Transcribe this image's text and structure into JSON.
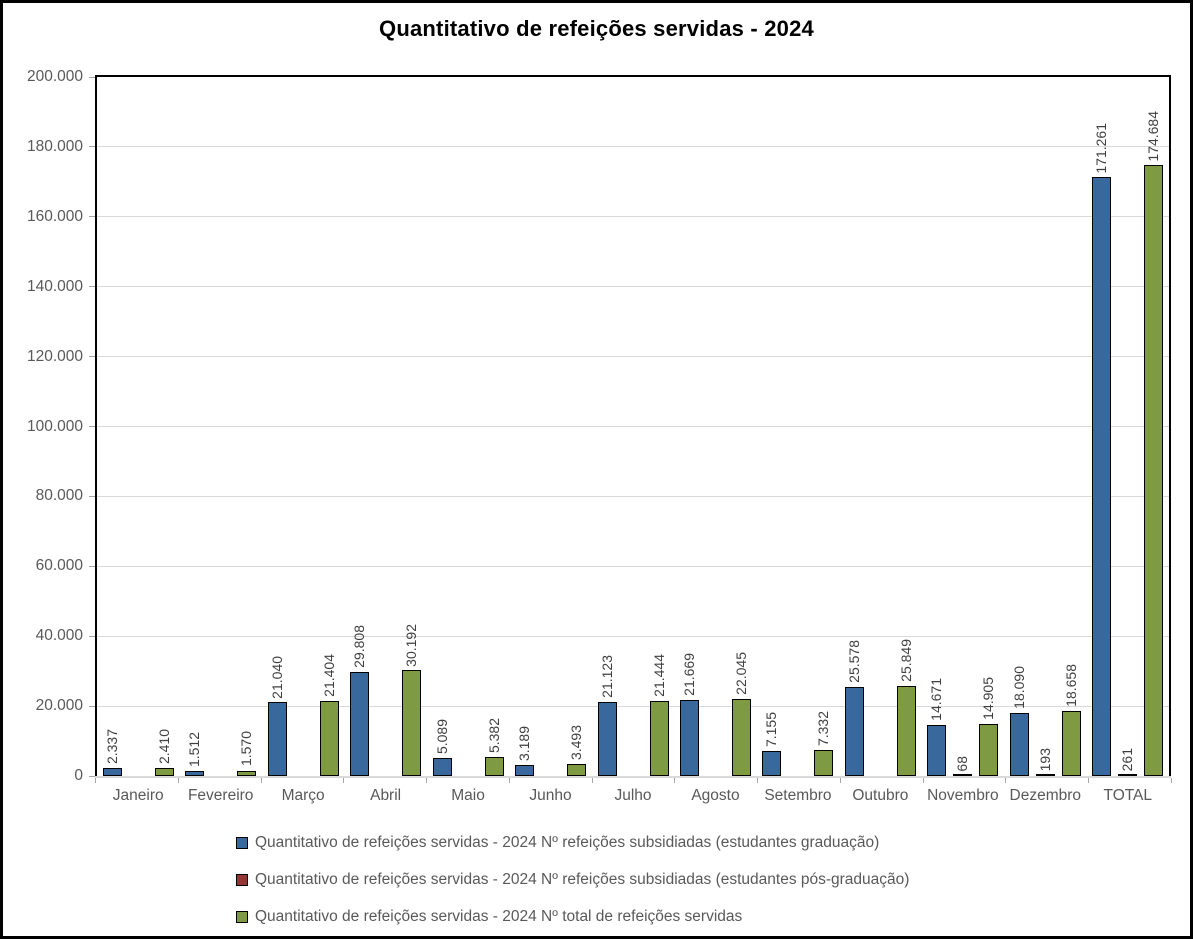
{
  "colors": {
    "series_graduacao": "#38689C",
    "series_pos_graduacao": "#943634",
    "series_total": "#7E9B44",
    "bar_border": "#000000",
    "gridline": "#D9D9D9",
    "plot_border": "#000000",
    "baseline": "#D9D9D9",
    "tick": "#A6A6A6",
    "axis_text": "#595959",
    "value_label_text": "#3F3F3F",
    "title_text": "#000000",
    "background": "#FFFFFF"
  },
  "chart_data": {
    "type": "bar",
    "title": "Quantitativo de refeições servidas - 2024",
    "categories": [
      "Janeiro",
      "Fevereiro",
      "Março",
      "Abril",
      "Maio",
      "Junho",
      "Julho",
      "Agosto",
      "Setembro",
      "Outubro",
      "Novembro",
      "Dezembro",
      "TOTAL"
    ],
    "series": [
      {
        "name": "Quantitativo de refeições servidas - 2024 Nº refeições subsidiadas (estudantes graduação)",
        "color": "#38689C",
        "values": [
          2337,
          1512,
          21040,
          29808,
          5089,
          3189,
          21123,
          21669,
          7155,
          25578,
          14671,
          18090,
          171261
        ],
        "labels": [
          "2.337",
          "1.512",
          "21.040",
          "29.808",
          "5.089",
          "3.189",
          "21.123",
          "21.669",
          "7.155",
          "25.578",
          "14.671",
          "18.090",
          "171.261"
        ]
      },
      {
        "name": "Quantitativo de refeições servidas - 2024 Nº refeições subsidiadas (estudantes pós-graduação)",
        "color": "#943634",
        "values": [
          null,
          null,
          null,
          null,
          null,
          null,
          null,
          null,
          null,
          null,
          68,
          193,
          261
        ],
        "labels": [
          null,
          null,
          null,
          null,
          null,
          null,
          null,
          null,
          null,
          null,
          "68",
          "193",
          "261"
        ]
      },
      {
        "name": "Quantitativo de refeições servidas - 2024 Nº total de refeições servidas",
        "color": "#7E9B44",
        "values": [
          2410,
          1570,
          21404,
          30192,
          5382,
          3493,
          21444,
          22045,
          7332,
          25849,
          14905,
          18658,
          174684
        ],
        "labels": [
          "2.410",
          "1.570",
          "21.404",
          "30.192",
          "5.382",
          "3.493",
          "21.444",
          "22.045",
          "7.332",
          "25.849",
          "14.905",
          "18.658",
          "174.684"
        ]
      }
    ],
    "ylim": [
      0,
      200000
    ],
    "ytick_step": 20000,
    "ytick_labels": [
      "0",
      "20.000",
      "40.000",
      "60.000",
      "80.000",
      "100.000",
      "120.000",
      "140.000",
      "160.000",
      "180.000",
      "200.000"
    ],
    "grid": true,
    "bar_label_rotation": "rotate-up-90",
    "legend_position": "bottom-left"
  }
}
